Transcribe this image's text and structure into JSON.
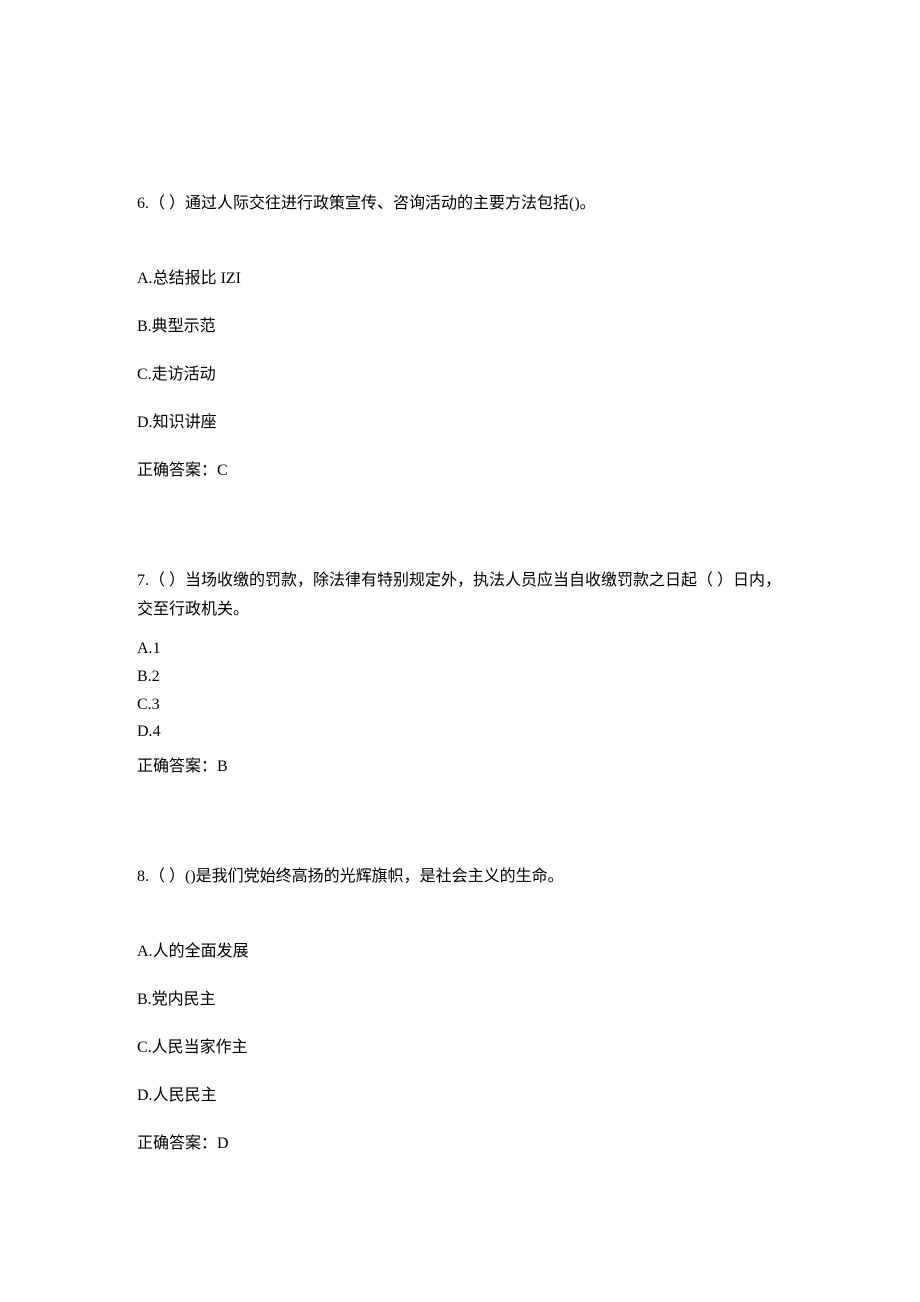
{
  "questions": [
    {
      "number": "6.",
      "prompt": "（ ）通过人际交往进行政策宣传、咨询活动的主要方法包括()。",
      "options": [
        {
          "label": "A.",
          "text": "总结报比   IZI"
        },
        {
          "label": "B.",
          "text": "典型示范"
        },
        {
          "label": "C.",
          "text": "走访活动"
        },
        {
          "label": "D.",
          "text": "知识讲座"
        }
      ],
      "answer_label": "正确答案：",
      "answer_value": "C"
    },
    {
      "number": "7.",
      "prompt": "（ ）当场收缴的罚款，除法律有特别规定外，执法人员应当自收缴罚款之日起（ ）日内，交至行政机关。",
      "options": [
        {
          "label": "A.",
          "text": "1"
        },
        {
          "label": "B.",
          "text": "2"
        },
        {
          "label": "C.",
          "text": "3"
        },
        {
          "label": "D.",
          "text": "4"
        }
      ],
      "answer_label": "正确答案：",
      "answer_value": "B"
    },
    {
      "number": "8.",
      "prompt": "（ ）()是我们党始终高扬的光辉旗帜，是社会主义的生命。",
      "options": [
        {
          "label": "A.",
          "text": "人的全面发展"
        },
        {
          "label": "B.",
          "text": "党内民主"
        },
        {
          "label": "C.",
          "text": "人民当家作主"
        },
        {
          "label": "D.",
          "text": "人民民主"
        }
      ],
      "answer_label": "正确答案：",
      "answer_value": "D"
    }
  ]
}
